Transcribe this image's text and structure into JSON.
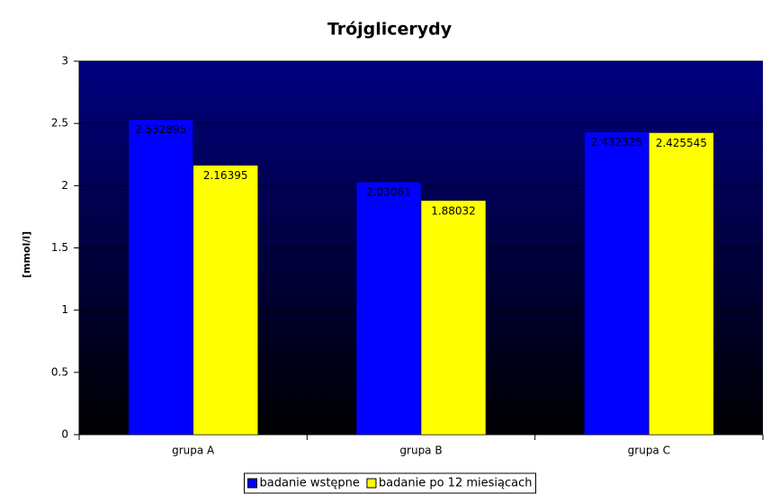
{
  "chart_data": {
    "type": "bar",
    "title": "Trójglicerydy",
    "y_label": "[mmol/l]",
    "categories": [
      "grupa A",
      "grupa B",
      "grupa C"
    ],
    "series": [
      {
        "name": "badanie wstępne",
        "color": "#0000ff",
        "values": [
          2.532895,
          2.03061,
          2.432325
        ]
      },
      {
        "name": "badanie po 12 miesiącach",
        "color": "#ffff00",
        "values": [
          2.16395,
          1.88032,
          2.425545
        ]
      }
    ],
    "ylim": [
      0,
      3
    ],
    "yticks": [
      0,
      0.5,
      1,
      1.5,
      2,
      2.5,
      3
    ],
    "grid": true,
    "legend": "bottom"
  }
}
